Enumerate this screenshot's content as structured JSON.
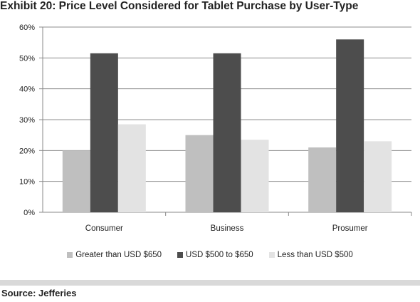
{
  "title": "Exhibit 20: Price Level Considered for Tablet Purchase by User-Type",
  "source": "Source: Jefferies",
  "chart_data": {
    "type": "bar",
    "title": "Exhibit 20: Price Level Considered for Tablet Purchase by User-Type",
    "categories": [
      "Consumer",
      "Business",
      "Prosumer"
    ],
    "series": [
      {
        "name": "Greater than USD $650",
        "values": [
          20,
          25,
          21
        ],
        "color": "#bfbfbf"
      },
      {
        "name": "USD $500 to $650",
        "values": [
          51.5,
          51.5,
          56
        ],
        "color": "#4d4d4d"
      },
      {
        "name": "Less than USD $500",
        "values": [
          28.5,
          23.5,
          23
        ],
        "color": "#e3e3e3"
      }
    ],
    "yticks": [
      "0%",
      "10%",
      "20%",
      "30%",
      "40%",
      "50%",
      "60%"
    ],
    "ylim": [
      0,
      60
    ],
    "xlabel": "",
    "ylabel": "",
    "grid": true,
    "legend_position": "bottom"
  }
}
